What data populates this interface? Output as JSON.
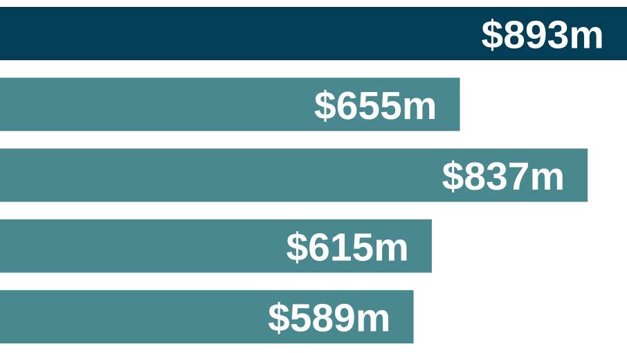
{
  "chart_data": {
    "type": "hbar",
    "values": [
      893,
      655,
      837,
      615,
      589
    ],
    "value_labels": [
      "$893m",
      "$655m",
      "$837m",
      "$615m",
      "$589m"
    ],
    "colors": [
      "#023f56",
      "#4a8890",
      "#4a8890",
      "#4a8890",
      "#4a8890"
    ],
    "label_color": "#ffffff"
  }
}
